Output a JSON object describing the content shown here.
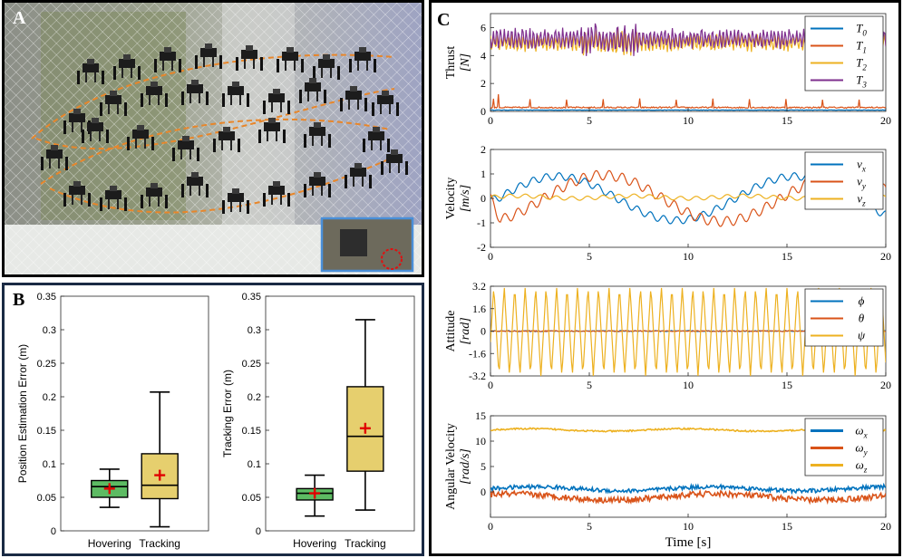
{
  "panels": {
    "a": "A",
    "b": "B",
    "c": "C"
  },
  "colors": {
    "c0": "#0072BD",
    "c1": "#D95319",
    "c2": "#EDB120",
    "c3": "#7E2F8E",
    "hover": "#5DBB63",
    "track": "#E6CF6E",
    "mean": "#E00000",
    "path": "#E8862A"
  },
  "chart_data": [
    {
      "type": "box",
      "ylabel": "Position Estimation Error (m)",
      "ylim": [
        0,
        0.35
      ],
      "yticks": [
        "0",
        "0.05",
        "0.1",
        "0.15",
        "0.2",
        "0.25",
        "0.3",
        "0.35"
      ],
      "categories": [
        "Hovering",
        "Tracking"
      ],
      "boxes": [
        {
          "min": 0.035,
          "q1": 0.05,
          "median": 0.066,
          "q3": 0.075,
          "max": 0.092,
          "mean": 0.063
        },
        {
          "min": 0.006,
          "q1": 0.048,
          "median": 0.068,
          "q3": 0.115,
          "max": 0.207,
          "mean": 0.083
        }
      ]
    },
    {
      "type": "box",
      "ylabel": "Tracking Error (m)",
      "ylim": [
        0,
        0.35
      ],
      "yticks": [
        "0",
        "0.05",
        "0.1",
        "0.15",
        "0.2",
        "0.25",
        "0.3",
        "0.35"
      ],
      "categories": [
        "Hovering",
        "Tracking"
      ],
      "boxes": [
        {
          "min": 0.022,
          "q1": 0.046,
          "median": 0.056,
          "q3": 0.063,
          "max": 0.083,
          "mean": 0.056
        },
        {
          "min": 0.031,
          "q1": 0.089,
          "median": 0.141,
          "q3": 0.215,
          "max": 0.315,
          "mean": 0.153
        }
      ]
    },
    {
      "type": "line",
      "id": "thrust",
      "ylabel_main": "Thrust",
      "ylabel_unit": "[N]",
      "xlim": [
        0,
        20
      ],
      "ylim": [
        0,
        7
      ],
      "yticks": [
        "0",
        "2",
        "4",
        "6"
      ],
      "xticks": [
        "0",
        "5",
        "10",
        "15",
        "20"
      ],
      "series": [
        {
          "name": "T",
          "sub": "0",
          "base": 0.1,
          "amp": 0.05,
          "noise": 0.03
        },
        {
          "name": "T",
          "sub": "1",
          "base": 0.28,
          "amp": 0.05,
          "noise": 0.1
        },
        {
          "name": "T",
          "sub": "2",
          "base": 4.9,
          "amp": 0.2,
          "noise": 0.45
        },
        {
          "name": "T",
          "sub": "3",
          "base": 5.2,
          "amp": 0.2,
          "noise": 0.55
        }
      ]
    },
    {
      "type": "line",
      "id": "velocity",
      "ylabel_main": "Velocity",
      "ylabel_unit": "[m/s]",
      "xlim": [
        0,
        20
      ],
      "ylim": [
        -2,
        2
      ],
      "yticks": [
        "-2",
        "-1",
        "0",
        "1",
        "2"
      ],
      "xticks": [
        "0",
        "5",
        "10",
        "15",
        "20"
      ],
      "series": [
        {
          "name": "v",
          "sub": "x"
        },
        {
          "name": "v",
          "sub": "y"
        },
        {
          "name": "v",
          "sub": "z"
        }
      ]
    },
    {
      "type": "line",
      "id": "attitude",
      "ylabel_main": "Attitude",
      "ylabel_unit": "[rad]",
      "xlim": [
        0,
        20
      ],
      "ylim": [
        -3.2,
        3.2
      ],
      "yticks": [
        "-3.2",
        "-1.6",
        "0",
        "1.6",
        "3.2"
      ],
      "xticks": [
        "0",
        "5",
        "10",
        "15",
        "20"
      ],
      "series": [
        {
          "name": "ϕ",
          "sub": ""
        },
        {
          "name": "θ",
          "sub": ""
        },
        {
          "name": "ψ",
          "sub": ""
        }
      ]
    },
    {
      "type": "line",
      "id": "angvel",
      "ylabel_main": "Angular Velocity",
      "ylabel_unit": "[rad/s]",
      "xlim": [
        0,
        20
      ],
      "ylim": [
        -5,
        15
      ],
      "yticks": [
        "0",
        "5",
        "10",
        "15"
      ],
      "xticks": [
        "0",
        "5",
        "10",
        "15",
        "20"
      ],
      "xlabel": "Time [s]",
      "series": [
        {
          "name": "ω",
          "sub": "x"
        },
        {
          "name": "ω",
          "sub": "y"
        },
        {
          "name": "ω",
          "sub": "z"
        }
      ]
    }
  ]
}
